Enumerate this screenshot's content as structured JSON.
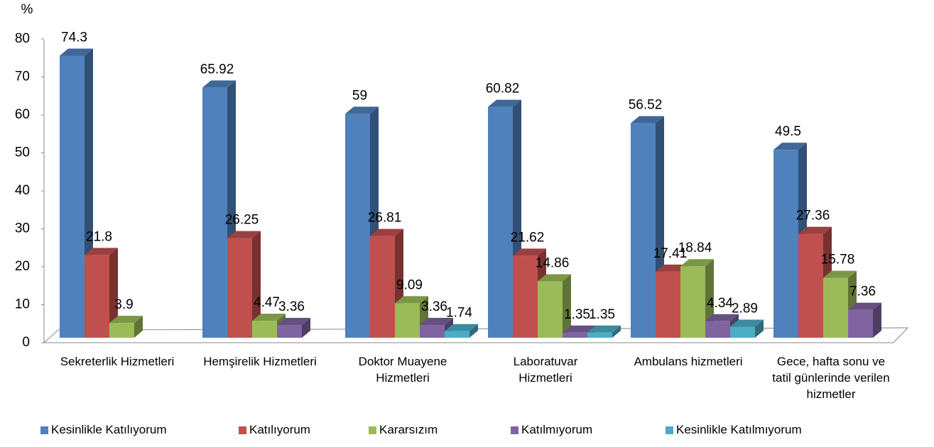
{
  "chart_data": {
    "type": "bar3d",
    "y_label": "%",
    "categories": [
      "Sekreterlik Hizmetleri",
      "Hemşirelik Hizmetleri",
      "Doktor Muayene Hizmetleri",
      "Laboratuvar Hizmetleri",
      "Ambulans hizmetleri",
      "Gece, hafta sonu ve tatil günlerinde verilen hizmetler"
    ],
    "series": [
      {
        "name": "Kesinlikle Katılıyorum",
        "color": "#4f81bd",
        "values": [
          74.3,
          65.92,
          59,
          60.82,
          56.52,
          49.5
        ]
      },
      {
        "name": "Katılıyorum",
        "color": "#c0504d",
        "values": [
          21.8,
          26.25,
          26.81,
          21.62,
          17.41,
          27.36
        ]
      },
      {
        "name": "Kararsızım",
        "color": "#9bbb59",
        "values": [
          3.9,
          4.47,
          9.09,
          14.86,
          18.84,
          15.78
        ]
      },
      {
        "name": "Katılmıyorum",
        "color": "#8064a2",
        "values": [
          null,
          3.36,
          3.36,
          1.35,
          4.34,
          7.36
        ]
      },
      {
        "name": "Kesinlikle Katılmıyorum",
        "color": "#4bacc6",
        "values": [
          null,
          null,
          1.74,
          1.35,
          2.89,
          null
        ]
      }
    ],
    "ylim": [
      0,
      80
    ],
    "yticks": [
      0,
      10,
      20,
      30,
      40,
      50,
      60,
      70,
      80
    ],
    "legend": "bottom"
  }
}
